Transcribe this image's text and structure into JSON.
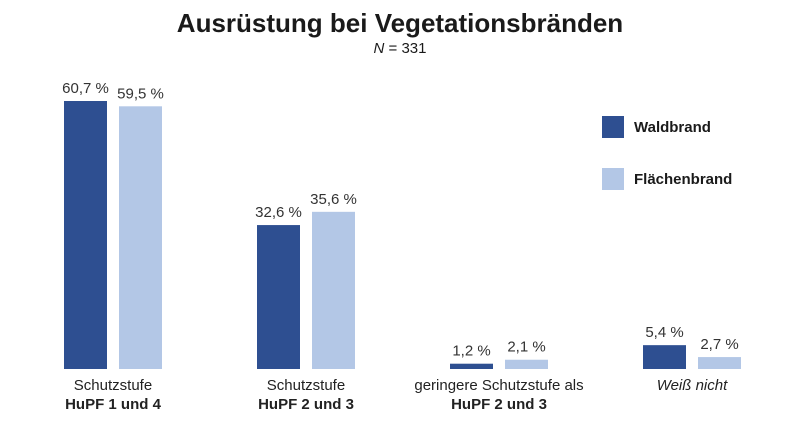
{
  "chart_data": {
    "type": "bar",
    "title": "Ausrüstung bei Vegetationsbränden",
    "subtitle_prefix": "N",
    "subtitle_value": " = 331",
    "categories": [
      {
        "line1": "Schutzstufe",
        "line2": "HuPF 1 und 4"
      },
      {
        "line1": "Schutzstufe",
        "line2": "HuPF 2 und 3"
      },
      {
        "line1": "geringere Schutzstufe als",
        "line2": "HuPF 2 und 3"
      },
      {
        "line1": "Weiß nicht",
        "line2": ""
      }
    ],
    "series": [
      {
        "name": "Waldbrand",
        "color": "#2e4f91",
        "values": [
          60.7,
          32.6,
          1.2,
          5.4
        ],
        "labels": [
          "60,7 %",
          "32,6 %",
          "1,2 %",
          "5,4 %"
        ]
      },
      {
        "name": "Flächenbrand",
        "color": "#b3c7e6",
        "values": [
          59.5,
          35.6,
          2.1,
          2.7
        ],
        "labels": [
          "59,5 %",
          "35,6 %",
          "2,1 %",
          "2,7 %"
        ]
      }
    ],
    "ylim": [
      0,
      60.7
    ],
    "legend_position": "right"
  }
}
